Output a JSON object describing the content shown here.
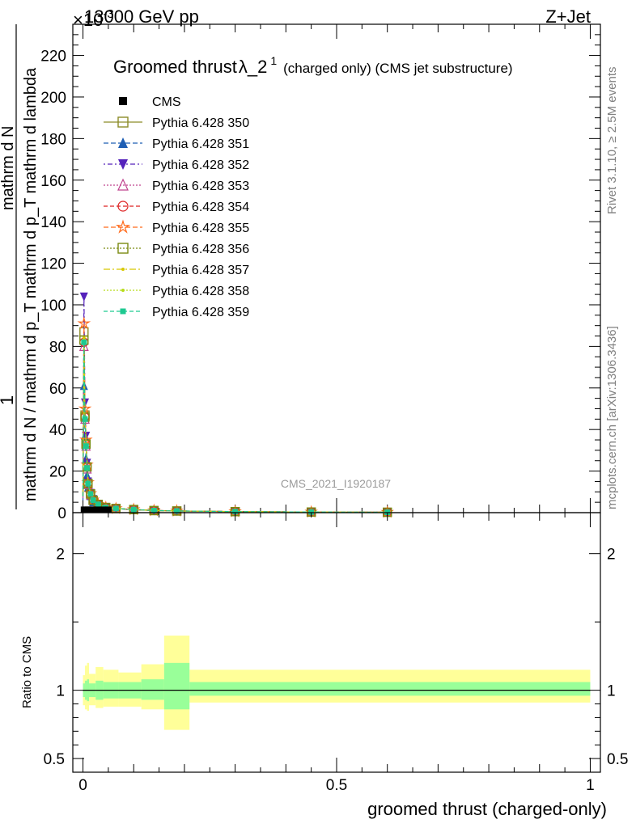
{
  "header": {
    "energy_label": "13000 GeV pp",
    "process_label": "Z+Jet",
    "exponent_label": "×10",
    "exponent_power": "-3"
  },
  "side": {
    "rivet_label": "Rivet 3.1.10, ≥ 2.5M events",
    "mcplots_label": "mcplots.cern.ch [arXiv:1306.3436]"
  },
  "chart_data": [
    {
      "type": "line",
      "title": "Groomed thrust",
      "title_symbol": "λ_2",
      "title_sup": "1",
      "subtitle": "(charged only) (CMS jet substructure)",
      "analysis_label": "CMS_2021_I1920187",
      "xlabel": "",
      "ylabel_numerator": "1",
      "ylabel_denominator": "mathrm d N / mathrm d p_T mathrm d p_T mathrm d lambda",
      "ylabel_top": "mathrm d N",
      "xlim": [
        -0.02,
        1.02
      ],
      "ylim": [
        0,
        235
      ],
      "yticks": [
        0,
        20,
        40,
        60,
        80,
        100,
        120,
        140,
        160,
        180,
        200,
        220
      ],
      "cms_bins": [
        {
          "x": 0.002,
          "y": 1.0
        },
        {
          "x": 0.006,
          "y": 1.0
        },
        {
          "x": 0.01,
          "y": 1.0
        },
        {
          "x": 0.015,
          "y": 1.0
        },
        {
          "x": 0.02,
          "y": 1.0
        },
        {
          "x": 0.03,
          "y": 1.0
        },
        {
          "x": 0.04,
          "y": 1.0
        },
        {
          "x": 0.05,
          "y": 1.0
        }
      ],
      "series": [
        {
          "name": "CMS",
          "color": "#000000",
          "marker": "filled-square"
        },
        {
          "name": "Pythia 6.428 350",
          "color": "#8c8c28",
          "marker": "open-square"
        },
        {
          "name": "Pythia 6.428 351",
          "color": "#1f5fb4",
          "marker": "filled-triangle-up"
        },
        {
          "name": "Pythia 6.428 352",
          "color": "#5522bb",
          "marker": "filled-triangle-down"
        },
        {
          "name": "Pythia 6.428 353",
          "color": "#c0448f",
          "marker": "open-triangle-up"
        },
        {
          "name": "Pythia 6.428 354",
          "color": "#dd2222",
          "marker": "open-circle"
        },
        {
          "name": "Pythia 6.428 355",
          "color": "#ff6a1a",
          "marker": "open-star"
        },
        {
          "name": "Pythia 6.428 356",
          "color": "#7a8a10",
          "marker": "open-square"
        },
        {
          "name": "Pythia 6.428 357",
          "color": "#d8c800",
          "marker": "small-dot"
        },
        {
          "name": "Pythia 6.428 358",
          "color": "#b8dc1a",
          "marker": "small-dot"
        },
        {
          "name": "Pythia 6.428 359",
          "color": "#1ec990",
          "marker": "filled-square-small"
        }
      ],
      "mc_x": [
        0.0,
        0.002,
        0.004,
        0.006,
        0.008,
        0.01,
        0.015,
        0.02,
        0.03,
        0.045,
        0.065,
        0.1,
        0.14,
        0.185,
        0.3,
        0.45,
        0.6
      ],
      "mc_peaks": {
        "Pythia 6.428 350": [
          8,
          87,
          47,
          33,
          22,
          14,
          9,
          6,
          4,
          2.5,
          2.0,
          1.5,
          1.0,
          0.8,
          0.5,
          0.3,
          0.2
        ],
        "Pythia 6.428 351": [
          6,
          61,
          37,
          26,
          18,
          12,
          8,
          5,
          3.5,
          2.4,
          1.9,
          1.4,
          1.0,
          0.8,
          0.5,
          0.3,
          0.2
        ],
        "Pythia 6.428 352": [
          10,
          104,
          53,
          37,
          24,
          15,
          9.5,
          6.5,
          4,
          2.6,
          2.0,
          1.5,
          1.0,
          0.8,
          0.5,
          0.3,
          0.2
        ],
        "Pythia 6.428 353": [
          7,
          80,
          45,
          32,
          21,
          13.5,
          8.5,
          6,
          3.8,
          2.5,
          2.0,
          1.5,
          1.0,
          0.8,
          0.5,
          0.3,
          0.2
        ],
        "Pythia 6.428 354": [
          8,
          82,
          46,
          33,
          22,
          14,
          9,
          6,
          4,
          2.5,
          2.0,
          1.5,
          1.0,
          0.8,
          0.5,
          0.3,
          0.2
        ],
        "Pythia 6.428 355": [
          9,
          91,
          50,
          35,
          23,
          14.5,
          9.2,
          6.2,
          4,
          2.5,
          2.0,
          1.5,
          1.0,
          0.8,
          0.5,
          0.3,
          0.2
        ],
        "Pythia 6.428 356": [
          8,
          83,
          46,
          33,
          22,
          14,
          9,
          6,
          4,
          2.5,
          2.0,
          1.5,
          1.0,
          0.8,
          0.5,
          0.3,
          0.2
        ],
        "Pythia 6.428 357": [
          8,
          84,
          46,
          33,
          22,
          14,
          9,
          6,
          4,
          2.5,
          2.0,
          1.5,
          1.0,
          0.8,
          0.5,
          0.3,
          0.2
        ],
        "Pythia 6.428 358": [
          8,
          82,
          45,
          32,
          21.5,
          14,
          9,
          6,
          4,
          2.5,
          2.0,
          1.5,
          1.0,
          0.8,
          0.5,
          0.3,
          0.2
        ],
        "Pythia 6.428 359": [
          8,
          82,
          45,
          32,
          21.5,
          14,
          9,
          6,
          4,
          2.5,
          2.0,
          1.5,
          1.0,
          0.8,
          0.5,
          0.3,
          0.2
        ]
      }
    },
    {
      "type": "area",
      "ylabel": "Ratio to CMS",
      "xlabel": "groomed thrust (charged-only)",
      "xlim": [
        -0.02,
        1.02
      ],
      "ylim": [
        0.4,
        2.3
      ],
      "yticks": [
        0.5,
        1,
        2
      ],
      "xticks": [
        0,
        0.5,
        1
      ],
      "xtick_labels": [
        "0",
        "0.5",
        "1"
      ],
      "ratio_reference": 1.0,
      "bands": [
        {
          "x0": 0.0,
          "x1": 0.004,
          "yellow": [
            0.89,
            1.11
          ],
          "green": [
            0.95,
            1.05
          ]
        },
        {
          "x0": 0.004,
          "x1": 0.008,
          "yellow": [
            0.86,
            1.18
          ],
          "green": [
            0.93,
            1.07
          ]
        },
        {
          "x0": 0.008,
          "x1": 0.012,
          "yellow": [
            0.85,
            1.2
          ],
          "green": [
            0.92,
            1.08
          ]
        },
        {
          "x0": 0.012,
          "x1": 0.025,
          "yellow": [
            0.89,
            1.12
          ],
          "green": [
            0.95,
            1.05
          ]
        },
        {
          "x0": 0.025,
          "x1": 0.04,
          "yellow": [
            0.87,
            1.17
          ],
          "green": [
            0.93,
            1.07
          ]
        },
        {
          "x0": 0.04,
          "x1": 0.07,
          "yellow": [
            0.88,
            1.15
          ],
          "green": [
            0.94,
            1.06
          ]
        },
        {
          "x0": 0.07,
          "x1": 0.115,
          "yellow": [
            0.88,
            1.13
          ],
          "green": [
            0.94,
            1.06
          ]
        },
        {
          "x0": 0.115,
          "x1": 0.16,
          "yellow": [
            0.86,
            1.19
          ],
          "green": [
            0.93,
            1.08
          ]
        },
        {
          "x0": 0.16,
          "x1": 0.21,
          "yellow": [
            0.71,
            1.4
          ],
          "green": [
            0.86,
            1.2
          ]
        },
        {
          "x0": 0.21,
          "x1": 1.0,
          "yellow": [
            0.91,
            1.15
          ],
          "green": [
            0.96,
            1.06
          ]
        }
      ]
    }
  ]
}
